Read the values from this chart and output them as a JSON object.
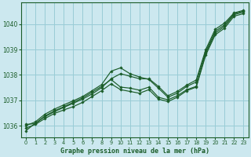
{
  "title": "Graphe pression niveau de la mer (hPa)",
  "bg_color": "#cce8ef",
  "grid_color": "#99ccd6",
  "line_color": "#1a5c28",
  "x_ticks": [
    0,
    1,
    2,
    3,
    4,
    5,
    6,
    7,
    8,
    9,
    10,
    11,
    12,
    13,
    14,
    15,
    16,
    17,
    18,
    19,
    20,
    21,
    22,
    23
  ],
  "y_ticks": [
    1036,
    1037,
    1038,
    1039,
    1040
  ],
  "ylim": [
    1035.55,
    1040.85
  ],
  "xlim": [
    -0.5,
    23.5
  ],
  "series": [
    [
      1035.8,
      1036.1,
      1036.35,
      1036.55,
      1036.72,
      1036.88,
      1037.05,
      1037.25,
      1037.5,
      1037.85,
      1038.05,
      1037.95,
      1037.85,
      1037.85,
      1037.55,
      1037.18,
      1037.35,
      1037.6,
      1037.8,
      1039.0,
      1039.8,
      1040.05,
      1040.45,
      1040.55
    ],
    [
      1036.0,
      1036.15,
      1036.45,
      1036.65,
      1036.82,
      1036.98,
      1037.15,
      1037.38,
      1037.62,
      1038.15,
      1038.28,
      1038.05,
      1037.92,
      1037.82,
      1037.48,
      1037.12,
      1037.28,
      1037.55,
      1037.72,
      1038.92,
      1039.72,
      1039.98,
      1040.42,
      1040.52
    ],
    [
      1036.05,
      1036.08,
      1036.38,
      1036.58,
      1036.75,
      1036.92,
      1037.1,
      1037.32,
      1037.55,
      1037.82,
      1037.52,
      1037.48,
      1037.4,
      1037.52,
      1037.12,
      1037.02,
      1037.18,
      1037.42,
      1037.55,
      1038.85,
      1039.65,
      1039.92,
      1040.38,
      1040.48
    ],
    [
      1035.9,
      1036.05,
      1036.28,
      1036.48,
      1036.62,
      1036.75,
      1036.92,
      1037.15,
      1037.38,
      1037.65,
      1037.42,
      1037.35,
      1037.28,
      1037.42,
      1037.05,
      1036.95,
      1037.12,
      1037.38,
      1037.52,
      1038.78,
      1039.58,
      1039.85,
      1040.32,
      1040.42
    ]
  ]
}
